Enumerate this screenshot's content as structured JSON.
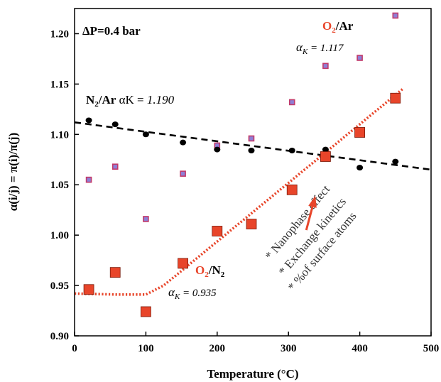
{
  "chart_data": {
    "type": "scatter",
    "xlabel": "Temperature (°C)",
    "ylabel": "α(i/j) = π(i)/π(j)",
    "xlim": [
      0,
      500
    ],
    "ylim": [
      0.9,
      1.225
    ],
    "xticks": [
      "0",
      "100",
      "200",
      "300",
      "400",
      "500"
    ],
    "yticks": [
      "0.90",
      "0.95",
      "1.00",
      "1.05",
      "1.10",
      "1.15",
      "1.20"
    ],
    "grid": false,
    "series": [
      {
        "name": "O2/Ar",
        "marker": "small-square",
        "color": "#c23a6a",
        "fill": "#8e7fd6",
        "x": [
          20,
          57,
          100,
          152,
          200,
          248,
          305,
          352,
          400,
          450
        ],
        "y": [
          1.055,
          1.068,
          1.016,
          1.061,
          1.089,
          1.096,
          1.132,
          1.168,
          1.176,
          1.218
        ]
      },
      {
        "name": "N2/Ar",
        "marker": "circle",
        "color": "#000000",
        "x": [
          20,
          57,
          100,
          152,
          200,
          248,
          305,
          352,
          400,
          450
        ],
        "y": [
          1.114,
          1.11,
          1.1,
          1.092,
          1.085,
          1.084,
          1.084,
          1.085,
          1.067,
          1.073
        ]
      },
      {
        "name": "O2/N2",
        "marker": "large-square",
        "color": "#e8452a",
        "x": [
          20,
          57,
          100,
          152,
          200,
          248,
          305,
          352,
          400,
          450
        ],
        "y": [
          0.946,
          0.963,
          0.924,
          0.972,
          1.004,
          1.011,
          1.045,
          1.078,
          1.102,
          1.136
        ]
      }
    ],
    "fits": [
      {
        "name": "N2/Ar trend",
        "style": "dashed",
        "color": "#000000",
        "x": [
          0,
          500
        ],
        "y": [
          1.112,
          1.065
        ]
      },
      {
        "name": "O2/N2 trend",
        "style": "dotted",
        "color": "#e8452a",
        "x": [
          0,
          60,
          100,
          125,
          460
        ],
        "y": [
          0.942,
          0.941,
          0.941,
          0.95,
          1.145
        ]
      }
    ],
    "arrow": {
      "color": "#e8452a",
      "x": [
        325,
        337
      ],
      "y": [
        1.005,
        1.037
      ]
    },
    "annotations": {
      "dp": "ΔP=0.4 bar",
      "o2ar_main": "O",
      "o2ar_sub": "2",
      "o2ar_rest": "/Ar",
      "o2ar_alpha": "α",
      "o2ar_alpha_sub": "K",
      "o2ar_alpha_val": " = 1.117",
      "n2ar_main": "N",
      "n2ar_sub": "2",
      "n2ar_rest": "/Ar",
      "n2ar_alpha": " αK = ",
      "n2ar_alpha_val": " 1.190",
      "o2n2_o": "O",
      "o2n2_sub1": "2",
      "o2n2_mid": "/N",
      "o2n2_sub2": "2",
      "o2n2_alpha": "α",
      "o2n2_alpha_sub": "K",
      "o2n2_alpha_val": " = 0.935",
      "effects": [
        "* Nanophase effect",
        "* Exchange kinetics",
        "* %of surface atoms"
      ]
    }
  }
}
